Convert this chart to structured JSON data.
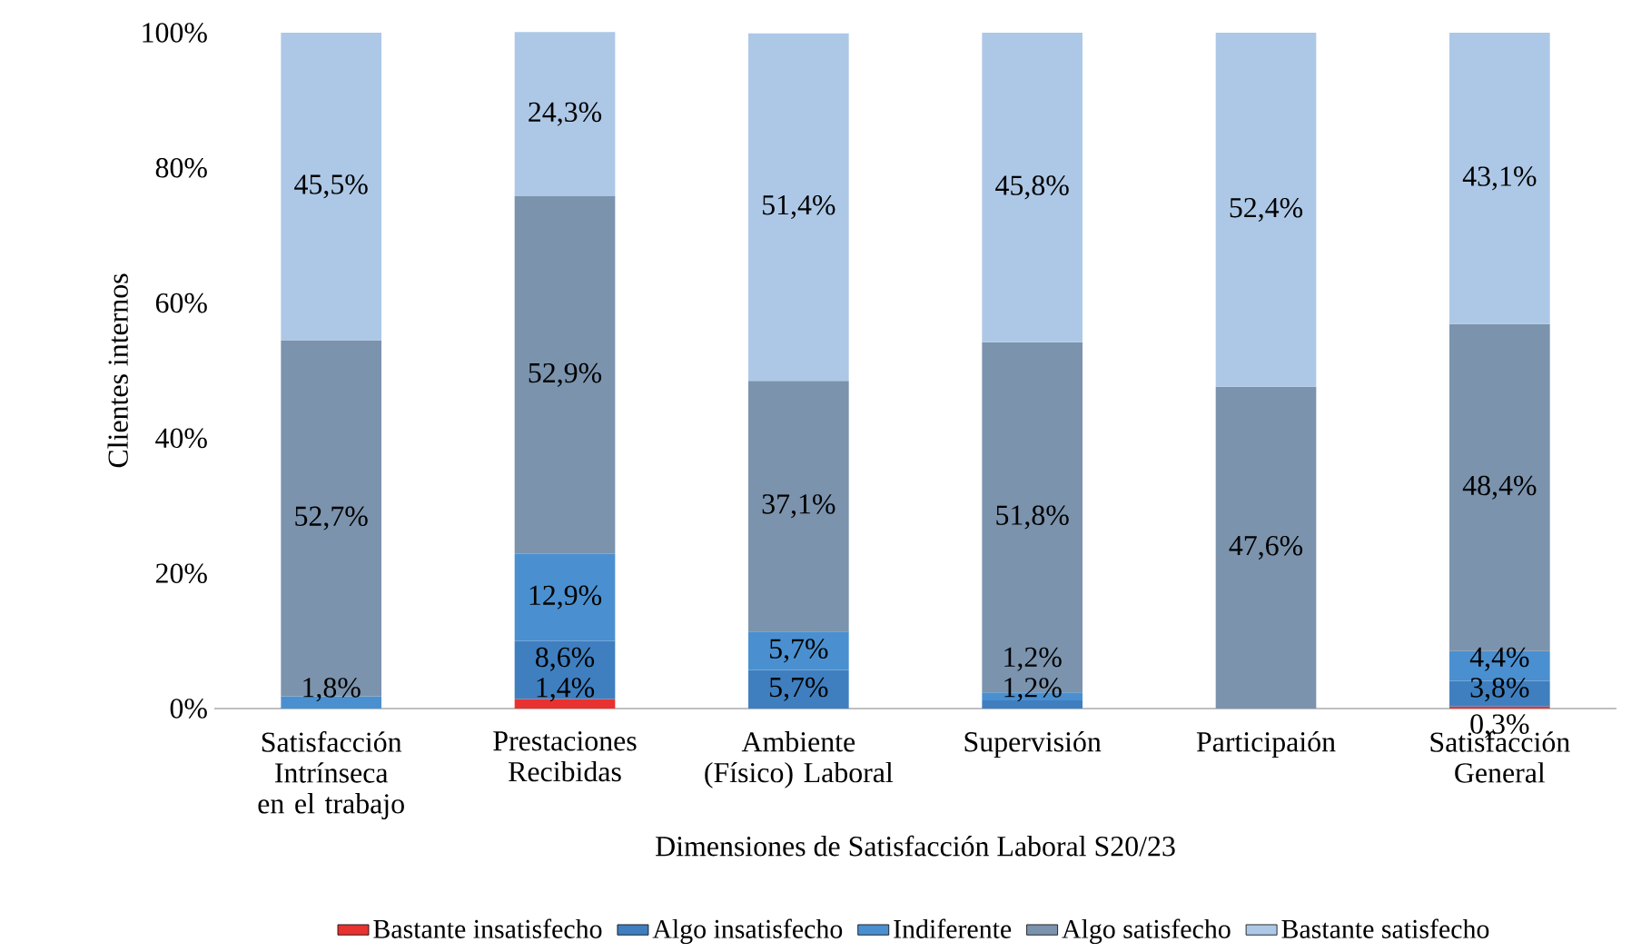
{
  "chart_data": {
    "type": "bar",
    "stacked": true,
    "xlabel": "Dimensiones de Satisfacción Laboral S20/23",
    "ylabel": "Clientes internos",
    "categories": [
      "Satisfacción Intrínseca en el trabajo",
      "Prestaciones Recibidas",
      "Ambiente (Físico) Laboral",
      "Supervisión",
      "Participaión",
      "Satisfacción General"
    ],
    "series": [
      {
        "name": "Bastante insatisfecho",
        "color": "#e8322f",
        "values": [
          null,
          1.4,
          null,
          null,
          null,
          0.3
        ],
        "value_labels": [
          null,
          "1,4%",
          null,
          null,
          null,
          "0,3%"
        ]
      },
      {
        "name": "Algo insatisfecho",
        "color": "#3f7fc0",
        "values": [
          null,
          8.6,
          5.7,
          1.2,
          null,
          3.8
        ],
        "value_labels": [
          null,
          "8,6%",
          "5,7%",
          "1,2%",
          null,
          "3,8%"
        ]
      },
      {
        "name": "Indiferente",
        "color": "#4a90d0",
        "values": [
          1.8,
          12.9,
          5.7,
          1.2,
          null,
          4.4
        ],
        "value_labels": [
          "1,8%",
          "12,9%",
          "5,7%",
          "1,2%",
          null,
          "4,4%"
        ]
      },
      {
        "name": "Algo satisfecho",
        "color": "#7b93ad",
        "values": [
          52.7,
          52.9,
          37.1,
          51.8,
          47.6,
          48.4
        ],
        "value_labels": [
          "52,7%",
          "52,9%",
          "37,1%",
          "51,8%",
          "47,6%",
          "48,4%"
        ]
      },
      {
        "name": "Bastante satisfecho",
        "color": "#adc8e6",
        "values": [
          45.5,
          24.3,
          51.4,
          45.8,
          52.4,
          43.1
        ],
        "value_labels": [
          "45,5%",
          "24,3%",
          "51,4%",
          "45,8%",
          "52,4%",
          "43,1%"
        ]
      }
    ],
    "ylim": [
      0,
      100
    ],
    "yticks": [
      {
        "value": 0,
        "label": "0%"
      },
      {
        "value": 20,
        "label": "20%"
      },
      {
        "value": 40,
        "label": "40%"
      },
      {
        "value": 60,
        "label": "60%"
      },
      {
        "value": 80,
        "label": "80%"
      },
      {
        "value": 100,
        "label": "100%"
      }
    ],
    "legend": "bottom",
    "grid": false
  }
}
